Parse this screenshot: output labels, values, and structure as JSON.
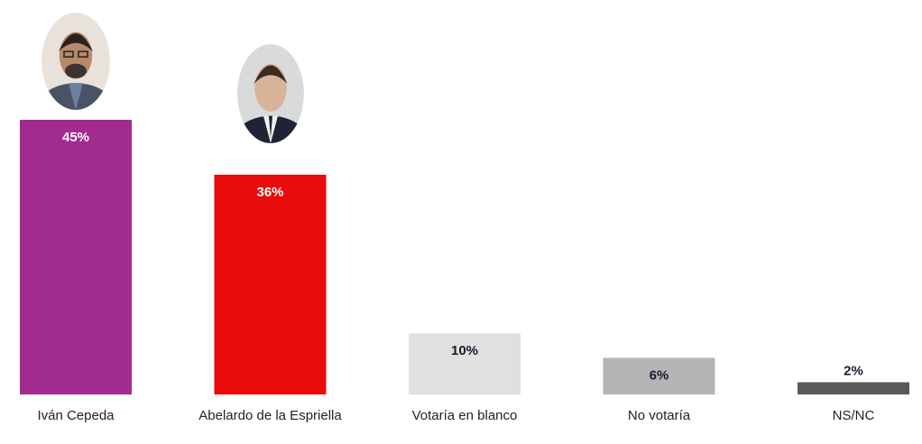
{
  "chart_data": {
    "type": "bar",
    "title": "",
    "xlabel": "",
    "ylabel": "",
    "ylim": [
      0,
      45
    ],
    "grid": false,
    "categories": [
      "Iván Cepeda",
      "Abelardo de la Espriella",
      "Votaría en blanco",
      "No votaría",
      "NS/NC"
    ],
    "values": [
      45,
      36,
      10,
      6,
      2
    ],
    "value_labels": [
      "45%",
      "36%",
      "10%",
      "6%",
      "2%"
    ],
    "colors": [
      "#a22b8f",
      "#e80c0c",
      "#e0e0e0",
      "#b5b5b5",
      "#5a5a5a"
    ],
    "label_colors": [
      "#ffffff",
      "#ffffff",
      "#1a1a2e",
      "#1a1a2e",
      "#1a1a2e"
    ],
    "candidate_photos": [
      "Iván Cepeda",
      "Abelardo de la Espriella"
    ]
  }
}
